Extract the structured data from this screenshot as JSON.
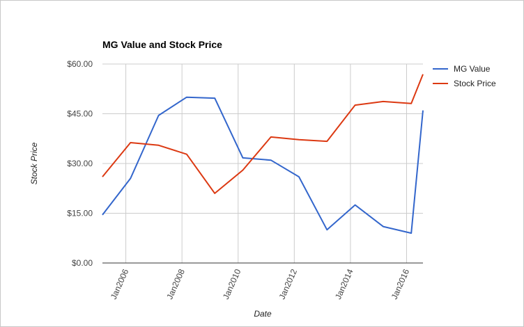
{
  "chart_data": {
    "type": "line",
    "title": "MG Value and Stock Price",
    "xlabel": "Date",
    "ylabel": "Stock Price",
    "x_ticks": [
      "Jan2006",
      "Jan2008",
      "Jan2010",
      "Jan2012",
      "Jan2014",
      "Jan2016"
    ],
    "y_ticks": [
      "$0.00",
      "$15.00",
      "$30.00",
      "$45.00",
      "$60.00"
    ],
    "ylim": [
      0,
      60
    ],
    "xlim": [
      "2005-03",
      "2016-08"
    ],
    "grid": true,
    "legend_position": "right",
    "series": [
      {
        "name": "MG Value",
        "color": "#3366cc",
        "points": [
          [
            "2005-03",
            14.5
          ],
          [
            "2006-03",
            25.5
          ],
          [
            "2007-03",
            44.5
          ],
          [
            "2008-03",
            50.0
          ],
          [
            "2009-03",
            49.7
          ],
          [
            "2010-03",
            31.7
          ],
          [
            "2011-03",
            31.0
          ],
          [
            "2012-03",
            26.0
          ],
          [
            "2013-03",
            10.0
          ],
          [
            "2014-03",
            17.5
          ],
          [
            "2015-03",
            11.0
          ],
          [
            "2016-03",
            9.0
          ],
          [
            "2016-08",
            46.0
          ]
        ]
      },
      {
        "name": "Stock Price",
        "color": "#dc3912",
        "points": [
          [
            "2005-03",
            26.0
          ],
          [
            "2006-03",
            36.3
          ],
          [
            "2007-03",
            35.5
          ],
          [
            "2008-03",
            32.8
          ],
          [
            "2009-03",
            21.0
          ],
          [
            "2010-03",
            28.0
          ],
          [
            "2011-03",
            38.0
          ],
          [
            "2012-03",
            37.2
          ],
          [
            "2013-03",
            36.7
          ],
          [
            "2014-03",
            47.6
          ],
          [
            "2015-03",
            48.7
          ],
          [
            "2016-03",
            48.1
          ],
          [
            "2016-08",
            56.9
          ]
        ]
      }
    ]
  }
}
